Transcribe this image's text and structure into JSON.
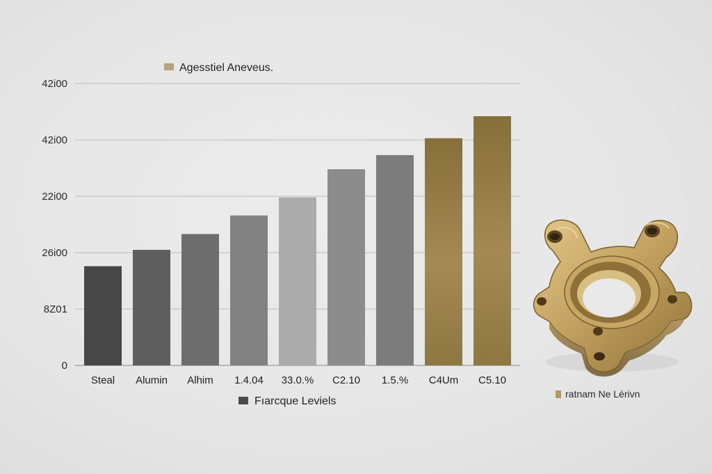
{
  "chart_data": {
    "type": "bar",
    "title": "",
    "xlabel": "",
    "ylabel": "",
    "top_legend": {
      "label": "Agesstiel Aneveus.",
      "color": "#b5a27e"
    },
    "bottom_legend": {
      "label": "Fıarcque Leviels",
      "color": "#4a4a4a"
    },
    "side_legend": {
      "label": "ratnam Ne Lérivn",
      "color": "#b09a62"
    },
    "y_ticks": [
      {
        "label": "0",
        "value": 0
      },
      {
        "label": "8Z01",
        "value": 1
      },
      {
        "label": "26i00",
        "value": 2
      },
      {
        "label": "22i00",
        "value": 3
      },
      {
        "label": "42i00",
        "value": 4
      },
      {
        "label": "42i00",
        "value": 5
      }
    ],
    "ylim": [
      0,
      5
    ],
    "grid": true,
    "categories": [
      "Steal",
      "Alumin",
      "Alhim",
      "1.4.04",
      "33.0.%",
      "C2.10",
      "1.5.%",
      "C4Um",
      "C5.10"
    ],
    "values": [
      1.76,
      2.05,
      2.33,
      2.66,
      2.98,
      3.48,
      3.73,
      4.03,
      4.42
    ],
    "bar_colors": [
      "#474747",
      "#5e5e5e",
      "#6e6e6e",
      "#828282",
      "#ababab",
      "#8c8c8c",
      "#7c7c7c",
      "gold",
      "gold"
    ]
  },
  "colors": {
    "gold_top": "#8a7440",
    "gold_mid": "#a48a52",
    "gold_bottom": "#8d7640",
    "grid": "#b9b9b9",
    "axis": "#8a8a8a"
  },
  "icons": {
    "part_image": "brass-flange-icon"
  }
}
